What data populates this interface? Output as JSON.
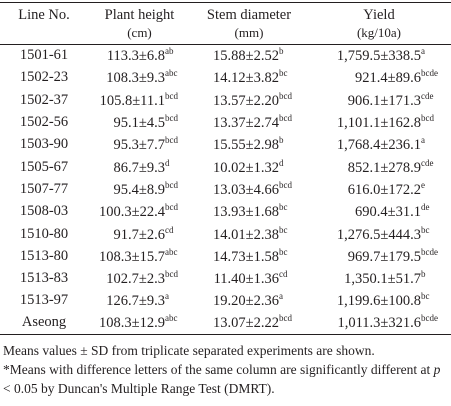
{
  "table": {
    "header": [
      {
        "label": "Line No."
      },
      {
        "label": "Plant height",
        "unit": "(cm)"
      },
      {
        "label": "Stem diameter",
        "unit": "(mm)"
      },
      {
        "label": "Yield",
        "unit": "(kg/10a)"
      }
    ],
    "rows": [
      [
        "1501-61",
        {
          "value": "113.3±6.8",
          "sup": "ab"
        },
        {
          "value": "15.88±2.52",
          "sup": "b"
        },
        {
          "value": "1,759.5±338.5",
          "sup": "a"
        }
      ],
      [
        "1502-23",
        {
          "value": "108.3±9.3",
          "sup": "abc"
        },
        {
          "value": "14.12±3.82",
          "sup": "bc"
        },
        {
          "value": "921.4±89.6",
          "sup": "bcde"
        }
      ],
      [
        "1502-37",
        {
          "value": "105.8±11.1",
          "sup": "bcd"
        },
        {
          "value": "13.57±2.20",
          "sup": "bcd"
        },
        {
          "value": "906.1±171.3",
          "sup": "cde"
        }
      ],
      [
        "1502-56",
        {
          "value": "95.1±4.5",
          "sup": "bcd"
        },
        {
          "value": "13.37±2.74",
          "sup": "bcd"
        },
        {
          "value": "1,101.1±162.8",
          "sup": "bcd"
        }
      ],
      [
        "1503-90",
        {
          "value": "95.3±7.7",
          "sup": "bcd"
        },
        {
          "value": "15.55±2.98",
          "sup": "b"
        },
        {
          "value": "1,768.4±236.1",
          "sup": "a"
        }
      ],
      [
        "1505-67",
        {
          "value": "86.7±9.3",
          "sup": "d"
        },
        {
          "value": "10.02±1.32",
          "sup": "d"
        },
        {
          "value": "852.1±278.9",
          "sup": "cde"
        }
      ],
      [
        "1507-77",
        {
          "value": "95.4±8.9",
          "sup": "bcd"
        },
        {
          "value": "13.03±4.66",
          "sup": "bcd"
        },
        {
          "value": "616.0±172.2",
          "sup": "e"
        }
      ],
      [
        "1508-03",
        {
          "value": "100.3±22.4",
          "sup": "bcd"
        },
        {
          "value": "13.93±1.68",
          "sup": "bc"
        },
        {
          "value": "690.4±31.1",
          "sup": "de"
        }
      ],
      [
        "1510-80",
        {
          "value": "91.7±2.6",
          "sup": "cd"
        },
        {
          "value": "14.01±2.38",
          "sup": "bc"
        },
        {
          "value": "1,276.5±444.3",
          "sup": "bc"
        }
      ],
      [
        "1513-80",
        {
          "value": "108.3±15.7",
          "sup": "abc"
        },
        {
          "value": "14.73±1.58",
          "sup": "bc"
        },
        {
          "value": "969.7±179.5",
          "sup": "bcde"
        }
      ],
      [
        "1513-83",
        {
          "value": "102.7±2.3",
          "sup": "bcd"
        },
        {
          "value": "11.40±1.36",
          "sup": "cd"
        },
        {
          "value": "1,350.1±51.7",
          "sup": "b"
        }
      ],
      [
        "1513-97",
        {
          "value": "126.7±9.3",
          "sup": "a"
        },
        {
          "value": "19.20±2.36",
          "sup": "a"
        },
        {
          "value": "1,199.6±100.8",
          "sup": "bc"
        }
      ],
      [
        "Aseong",
        {
          "value": "108.3±12.9",
          "sup": "abc"
        },
        {
          "value": "13.07±2.22",
          "sup": "bcd"
        },
        {
          "value": "1,011.3±321.6",
          "sup": "bcde"
        }
      ]
    ]
  },
  "notes": [
    [
      "Means values ± SD from triplicate separated experiments are shown."
    ],
    [
      "*Means with difference letters of the same column are significantly different at ",
      "p",
      " < 0.05 by Duncan's Multiple Range Test (DMRT)."
    ]
  ]
}
